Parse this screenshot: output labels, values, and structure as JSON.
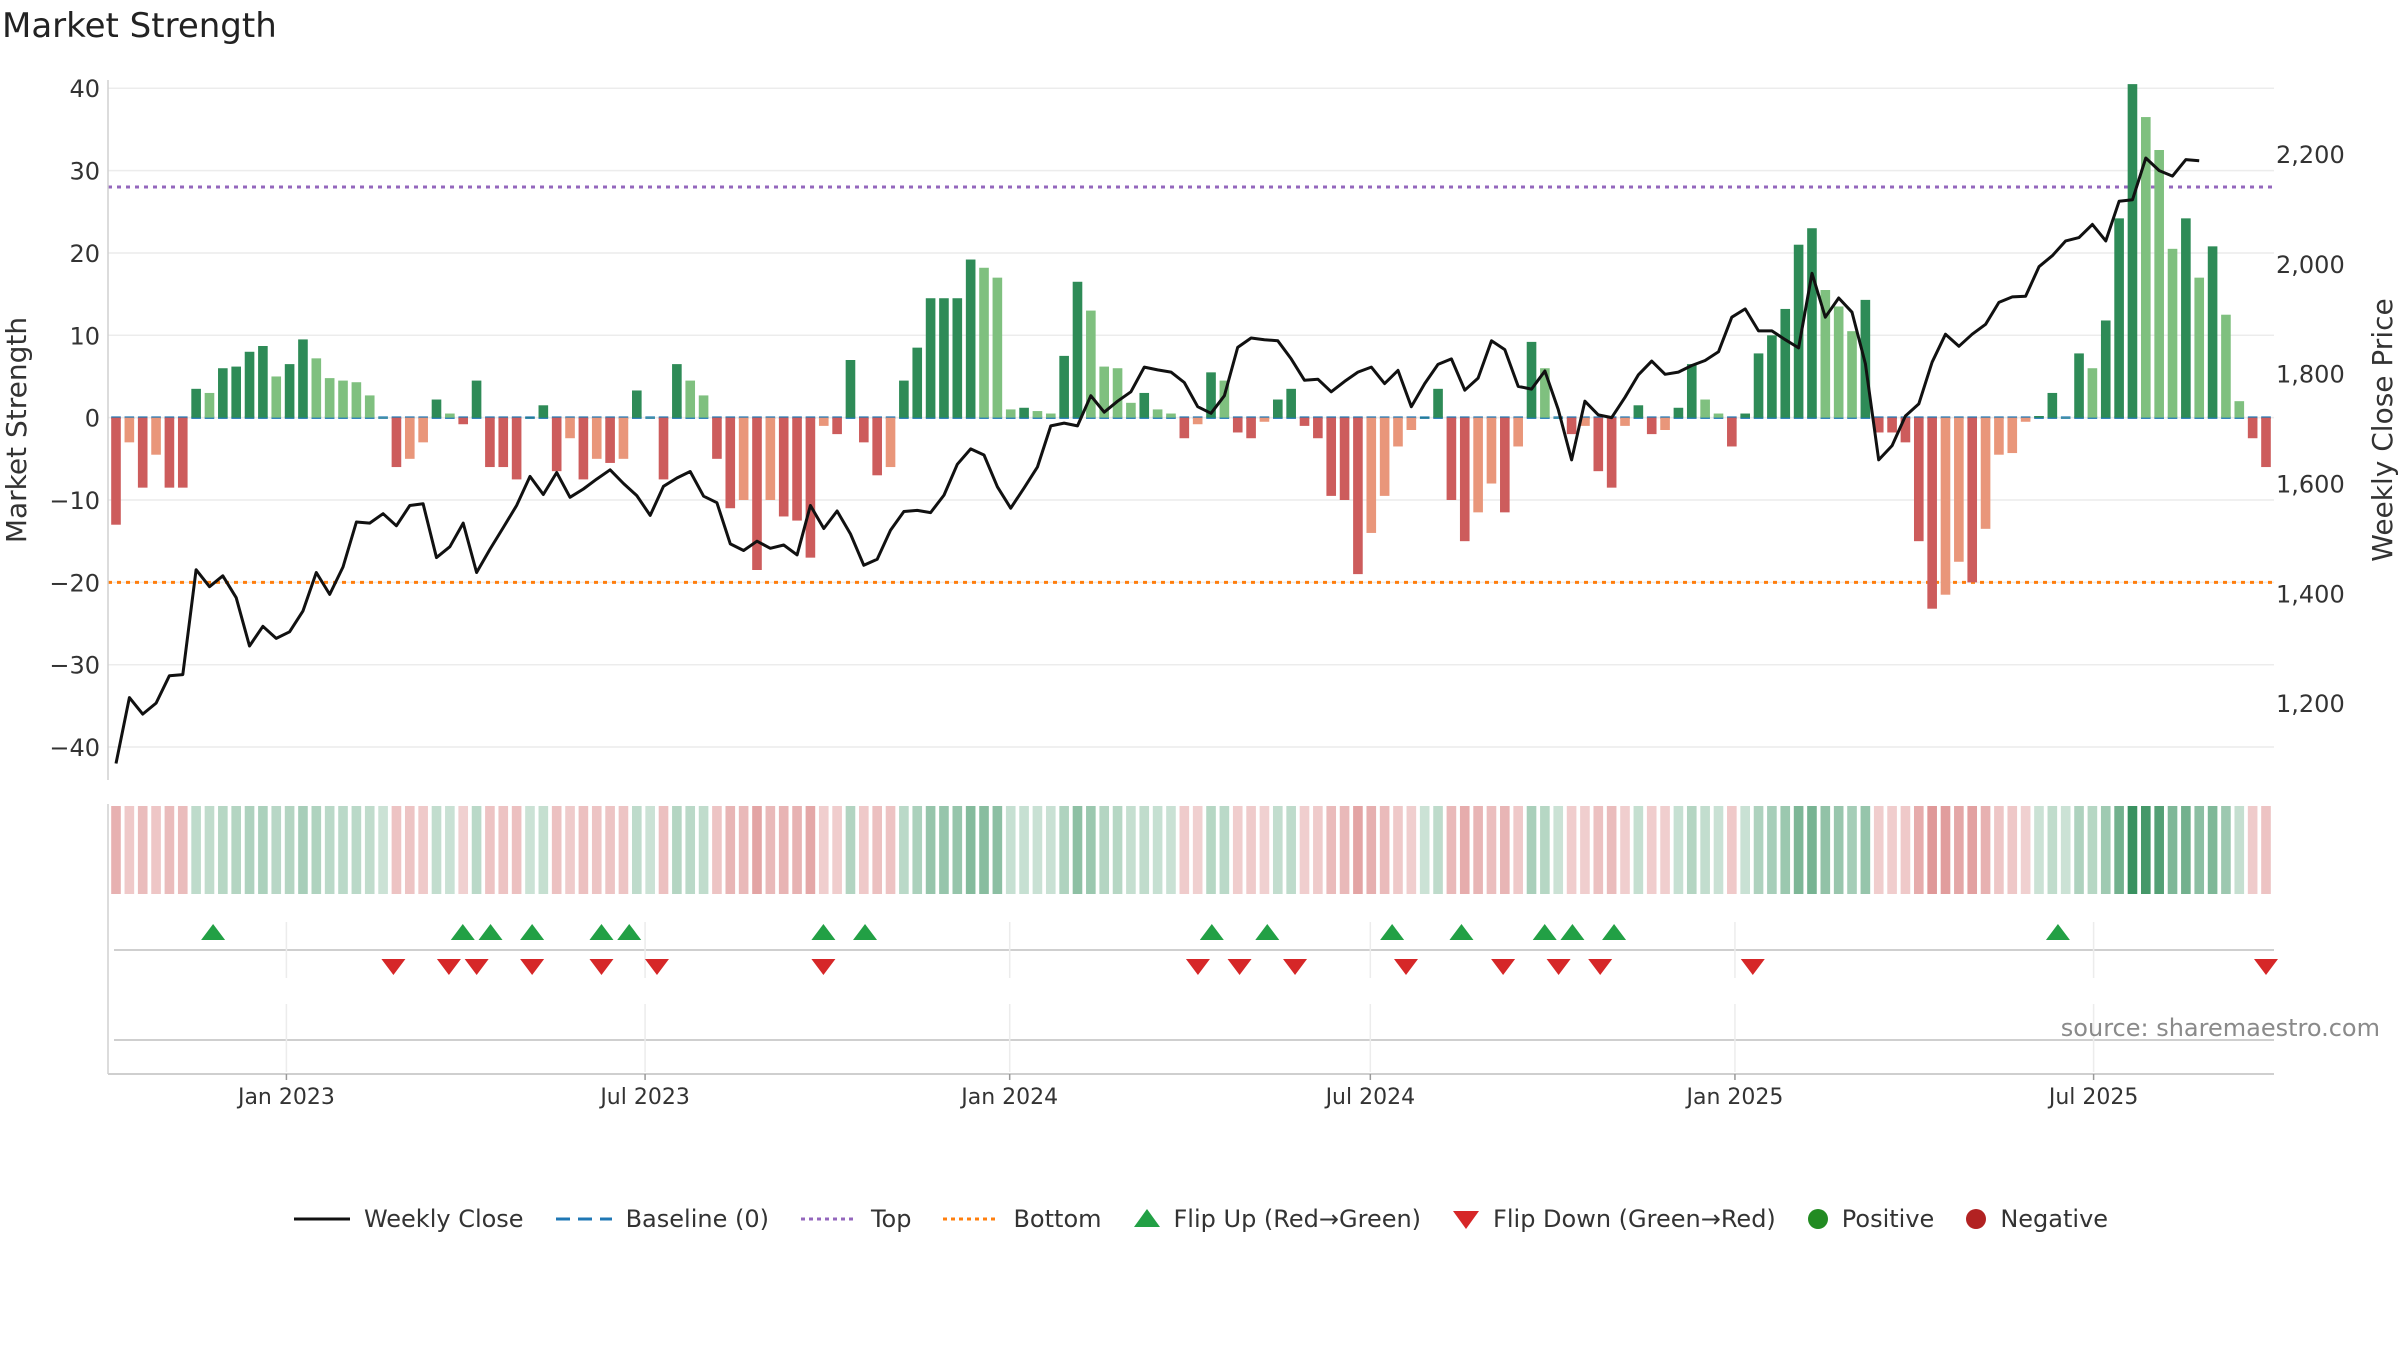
{
  "chart_data": {
    "type": "bar",
    "title": "Market Strength",
    "ylabel": "Market Strength",
    "y2label": "Weekly Close Price",
    "ylim": [
      -44,
      41
    ],
    "y2lim": [
      1060,
      2335
    ],
    "yticks": [
      40,
      30,
      20,
      10,
      0,
      -10,
      -20,
      -30,
      -40
    ],
    "yticklabels": [
      "40",
      "30",
      "20",
      "10",
      "0",
      "−10",
      "−20",
      "−30",
      "−40"
    ],
    "y2ticks": [
      2200,
      2000,
      1800,
      1600,
      1400,
      1200
    ],
    "y2ticklabels": [
      "2,200",
      "2,000",
      "1,800",
      "1,600",
      "1,400",
      "1,200"
    ],
    "x_start": "2022-10-07",
    "x_end": "2025-09-26",
    "xticks": [
      "2023-01-01",
      "2023-07-01",
      "2024-01-01",
      "2024-07-01",
      "2025-01-01",
      "2025-07-01"
    ],
    "xticklabels": [
      "Jan 2023",
      "Jul 2023",
      "Jan 2024",
      "Jul 2024",
      "Jan 2025",
      "Jul 2025"
    ],
    "top_level": 28,
    "bottom_level": -20,
    "baseline": 0,
    "strength": [
      -13,
      -3,
      -8.5,
      -4.5,
      -8.5,
      -8.5,
      3.5,
      3,
      6,
      6.2,
      8,
      8.7,
      5,
      6.5,
      9.5,
      7.2,
      4.8,
      4.5,
      4.3,
      2.7,
      0,
      -6,
      -5,
      -3,
      2.2,
      0.5,
      -0.8,
      4.5,
      -6,
      -6,
      -7.5,
      0,
      1.5,
      -6.5,
      -2.5,
      -7.5,
      -5,
      -5.5,
      -5,
      3.3,
      0,
      -7.5,
      6.5,
      4.5,
      2.7,
      -5,
      -11,
      -10,
      -18.5,
      -10,
      -12,
      -12.5,
      -17,
      -1,
      -2,
      7,
      -3,
      -7,
      -6,
      4.5,
      8.5,
      14.5,
      14.5,
      14.5,
      19.2,
      18.2,
      17,
      1,
      1.2,
      0.8,
      0.5,
      7.5,
      16.5,
      13,
      6.2,
      6,
      1.8,
      3,
      1,
      0.5,
      -2.5,
      -0.8,
      5.5,
      4.5,
      -1.8,
      -2.5,
      -0.5,
      2.2,
      3.5,
      -1,
      -2.5,
      -9.5,
      -10,
      -19,
      -14,
      -9.5,
      -3.5,
      -1.5,
      0,
      3.5,
      -10,
      -15,
      -11.5,
      -8,
      -11.5,
      -3.5,
      9.2,
      6,
      0,
      -2,
      -1,
      -6.5,
      -8.5,
      -1,
      1.5,
      -2,
      -1.5,
      1.2,
      6.5,
      2.2,
      0.5,
      -3.5,
      0.5,
      7.8,
      10,
      13.2,
      21,
      23,
      15.5,
      13.5,
      10.5,
      14.3,
      -1.8,
      -1.8,
      -3,
      -15,
      -23.2,
      -21.5,
      -17.5,
      -20,
      -13.5,
      -4.5,
      -4.3,
      -0.5,
      0.2,
      3,
      0,
      7.8,
      6,
      11.8,
      24.2,
      40.5,
      36.5,
      32.5,
      20.5,
      24.2,
      17,
      20.8,
      12.5,
      2,
      -2.5,
      -6
    ],
    "close": [
      1090,
      1210,
      1180,
      1200,
      1250,
      1252,
      1443,
      1412,
      1432,
      1392,
      1304,
      1340,
      1318,
      1330,
      1368,
      1438,
      1398,
      1448,
      1530,
      1528,
      1545,
      1523,
      1560,
      1563,
      1465,
      1485,
      1528,
      1438,
      1480,
      1520,
      1560,
      1613,
      1580,
      1620,
      1575,
      1590,
      1608,
      1625,
      1600,
      1578,
      1542,
      1595,
      1610,
      1622,
      1577,
      1565,
      1490,
      1478,
      1495,
      1482,
      1488,
      1470,
      1560,
      1518,
      1550,
      1508,
      1451,
      1462,
      1515,
      1549,
      1551,
      1547,
      1579,
      1635,
      1663,
      1652,
      1594,
      1555,
      1592,
      1630,
      1705,
      1710,
      1705,
      1760,
      1730,
      1750,
      1767,
      1812,
      1807,
      1803,
      1784,
      1740,
      1728,
      1760,
      1848,
      1865,
      1862,
      1860,
      1827,
      1788,
      1790,
      1767,
      1786,
      1803,
      1812,
      1782,
      1806,
      1740,
      1782,
      1817,
      1827,
      1770,
      1792,
      1860,
      1844,
      1777,
      1772,
      1805,
      1735,
      1643,
      1750,
      1725,
      1720,
      1757,
      1798,
      1823,
      1799,
      1803,
      1815,
      1824,
      1840,
      1903,
      1918,
      1878,
      1878,
      1862,
      1847,
      1983,
      1903,
      1938,
      1912,
      1818,
      1643,
      1669,
      1723,
      1745,
      1821,
      1872,
      1850,
      1872,
      1890,
      1930,
      1940,
      1941,
      1995,
      2015,
      2042,
      2048,
      2072,
      2042,
      2114,
      2117,
      2193,
      2170,
      2160,
      2190,
      2188
    ],
    "flip_up_dates": [
      "2022-11-25",
      "2023-03-31",
      "2023-04-14",
      "2023-05-05",
      "2023-06-09",
      "2023-06-23",
      "2023-09-29",
      "2023-10-20",
      "2024-04-12",
      "2024-05-10",
      "2024-07-12",
      "2024-08-16",
      "2024-09-27",
      "2024-10-11",
      "2024-11-01",
      "2025-06-13"
    ],
    "flip_down_dates": [
      "2023-02-24",
      "2023-03-24",
      "2023-04-07",
      "2023-05-05",
      "2023-06-09",
      "2023-07-07",
      "2023-09-29",
      "2024-04-05",
      "2024-04-26",
      "2024-05-24",
      "2024-07-19",
      "2024-09-06",
      "2024-10-04",
      "2024-10-25",
      "2025-01-10",
      "2025-09-26"
    ],
    "legend": [
      "Weekly Close",
      "Baseline (0)",
      "Top",
      "Bottom",
      "Flip Up (Red→Green)",
      "Flip Down (Green→Red)",
      "Positive",
      "Negative"
    ],
    "colors": {
      "strong_pos": "#2e8b57",
      "weak_pos": "#7fc07f",
      "strong_neg": "#cd5c5c",
      "weak_neg": "#e9967a",
      "close_line": "#111111",
      "baseline": "#1f77b4",
      "top": "#9467bd",
      "bottom": "#ff7f0e",
      "flip_up": "#22a045",
      "flip_down": "#d62728",
      "positive_dot": "#228b22",
      "negative_dot": "#b22222"
    }
  },
  "source": "source: sharemaestro.com"
}
